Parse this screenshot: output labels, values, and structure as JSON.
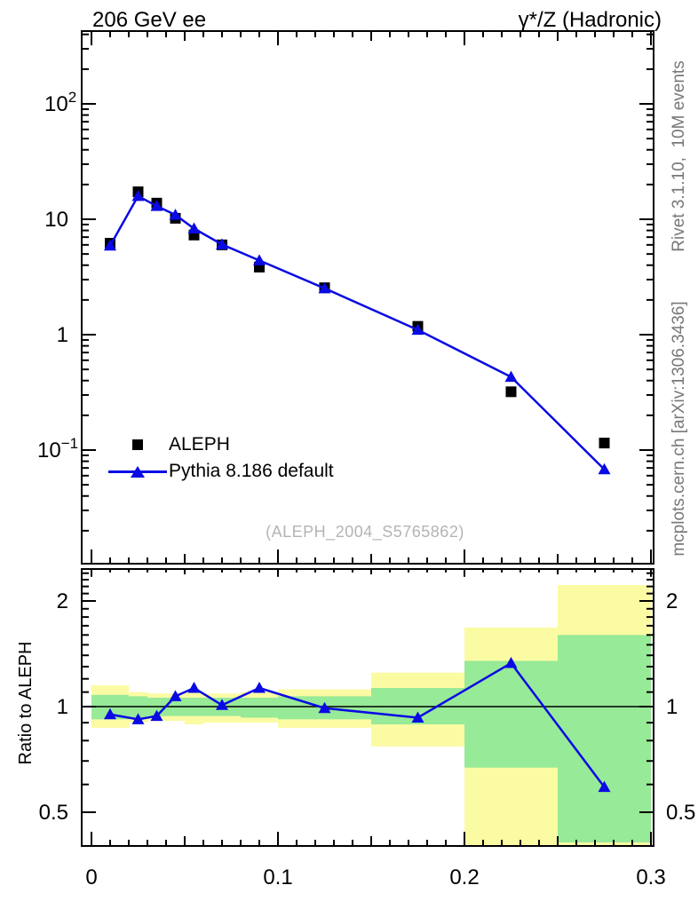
{
  "header": {
    "left_title": "206 GeV ee",
    "right_title": "γ*/Z (Hadronic)"
  },
  "side_notes": {
    "top": "Rivet 3.1.10,  10M events",
    "bottom": "mcplots.cern.ch [arXiv:1306.3436]"
  },
  "watermark": "(ALEPH_2004_S5765862)",
  "legend": {
    "entries": [
      {
        "label": "ALEPH",
        "marker": "black-square"
      },
      {
        "label": "Pythia 8.186 default",
        "marker": "blue-line-triangle"
      }
    ]
  },
  "colors": {
    "curve_blue": "#0a0ae4",
    "band_yellow": "#fbfba4",
    "band_green": "#97ea97",
    "frame_black": "#000000",
    "side_note_gray": "#787878",
    "watermark_gray": "#b4b4b4"
  },
  "chart_data": {
    "type": "line",
    "title": "206 GeV ee",
    "right_title": "γ*/Z (Hadronic)",
    "xlabel": "",
    "ylabel": "",
    "xlim": [
      0,
      0.3
    ],
    "ylim": [
      0.0104,
      430
    ],
    "y_log": true,
    "grid": false,
    "legend_position": "left-middle",
    "x": [
      0.01,
      0.025,
      0.035,
      0.045,
      0.055,
      0.07,
      0.09,
      0.125,
      0.175,
      0.225,
      0.275
    ],
    "bin_edges": [
      0,
      0.02,
      0.03,
      0.04,
      0.05,
      0.06,
      0.08,
      0.1,
      0.15,
      0.2,
      0.25,
      0.3
    ],
    "series": [
      {
        "name": "ALEPH",
        "marker": "square",
        "color": "#000000",
        "values": [
          6.2,
          17.3,
          13.8,
          10.2,
          7.3,
          6.0,
          3.85,
          2.55,
          1.18,
          0.32,
          0.115
        ]
      },
      {
        "name": "Pythia 8.186 default",
        "marker": "triangle",
        "color": "#0a0ae4",
        "values": [
          5.9,
          15.9,
          13.0,
          10.9,
          8.3,
          6.05,
          4.4,
          2.52,
          1.1,
          0.43,
          0.068
        ]
      }
    ],
    "x_ticks": [
      {
        "v": 0.0,
        "label": "0"
      },
      {
        "v": 0.1,
        "label": "0.1"
      },
      {
        "v": 0.2,
        "label": "0.2"
      },
      {
        "v": 0.3,
        "label": "0.3"
      }
    ],
    "y_ticks": [
      {
        "v": 100,
        "base": "10",
        "exp": "2"
      },
      {
        "v": 10,
        "base": "10",
        "exp": ""
      },
      {
        "v": 1,
        "base": "1",
        "exp": ""
      },
      {
        "v": 0.1,
        "base": "10",
        "exp": "−1"
      }
    ],
    "ratio": {
      "ylabel": "Ratio to ALEPH",
      "ylim": [
        0.403,
        2.47
      ],
      "baseline": 1,
      "values": [
        0.95,
        0.92,
        0.94,
        1.07,
        1.13,
        1.01,
        1.13,
        0.99,
        0.93,
        1.33,
        0.59
      ],
      "y_ticks": [
        {
          "v": 2,
          "label": "2"
        },
        {
          "v": 1,
          "label": "1"
        },
        {
          "v": 0.5,
          "label": "0.5"
        }
      ],
      "bands": {
        "yellow": [
          [
            0.87,
            1.15
          ],
          [
            0.9,
            1.1
          ],
          [
            0.91,
            1.09
          ],
          [
            0.91,
            1.09
          ],
          [
            0.89,
            1.1
          ],
          [
            0.9,
            1.09
          ],
          [
            0.9,
            1.1
          ],
          [
            0.87,
            1.12
          ],
          [
            0.77,
            1.25
          ],
          [
            0.38,
            1.68
          ],
          [
            0.38,
            2.22
          ]
        ],
        "green": [
          [
            0.92,
            1.08
          ],
          [
            0.93,
            1.07
          ],
          [
            0.94,
            1.06
          ],
          [
            0.94,
            1.06
          ],
          [
            0.94,
            1.06
          ],
          [
            0.94,
            1.06
          ],
          [
            0.93,
            1.06
          ],
          [
            0.92,
            1.07
          ],
          [
            0.89,
            1.13
          ],
          [
            0.67,
            1.35
          ],
          [
            0.41,
            1.6
          ]
        ]
      }
    }
  }
}
